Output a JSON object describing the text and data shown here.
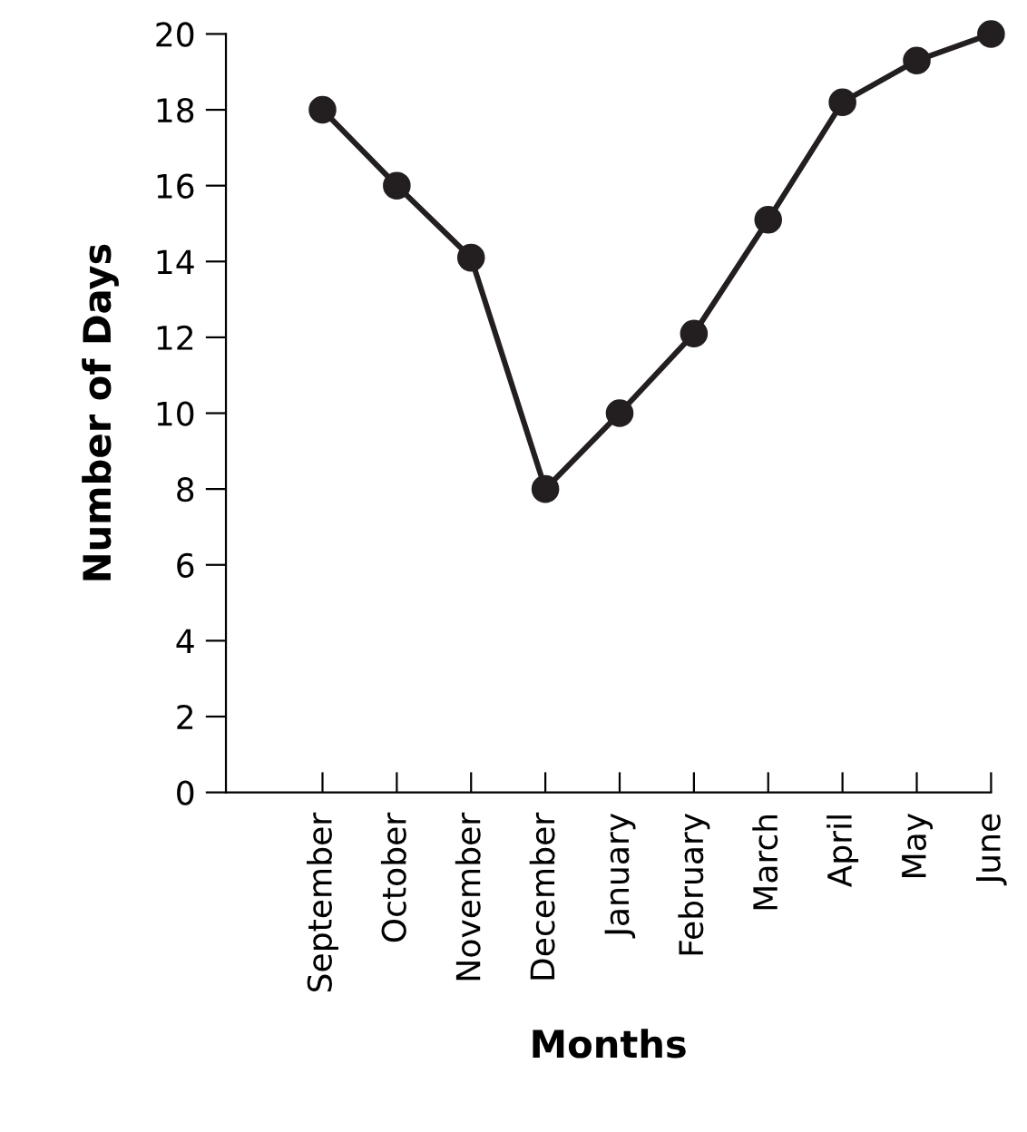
{
  "chart_data": {
    "type": "line",
    "xlabel": "Months",
    "ylabel": "Number of Days",
    "categories": [
      "September",
      "October",
      "November",
      "December",
      "January",
      "February",
      "March",
      "April",
      "May",
      "June"
    ],
    "series": [
      {
        "color": "#231f20",
        "values": [
          18,
          16,
          14.1,
          8,
          10,
          12.1,
          15.1,
          18.2,
          19.3,
          20
        ]
      }
    ],
    "ylim": [
      0,
      20
    ],
    "yticks": [
      0,
      2,
      4,
      6,
      8,
      10,
      12,
      14,
      16,
      18,
      20
    ],
    "grid": false,
    "legend": false,
    "marker": "circle",
    "line_style": "solid"
  }
}
